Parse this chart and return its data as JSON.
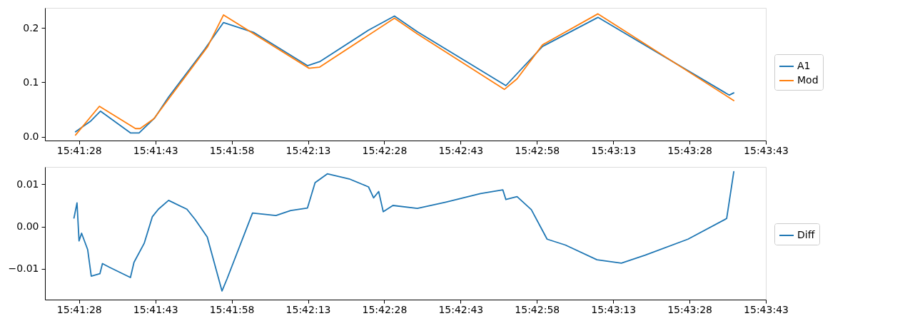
{
  "chart_data": [
    {
      "type": "line",
      "xlim": [
        15.68925,
        15.728611
      ],
      "ylim": [
        -0.007,
        0.237
      ],
      "xticks": [
        {
          "value": 15.691111,
          "label": "15:41:28"
        },
        {
          "value": 15.695278,
          "label": "15:41:43"
        },
        {
          "value": 15.699444,
          "label": "15:41:58"
        },
        {
          "value": 15.703611,
          "label": "15:42:13"
        },
        {
          "value": 15.707778,
          "label": "15:42:28"
        },
        {
          "value": 15.711944,
          "label": "15:42:43"
        },
        {
          "value": 15.716111,
          "label": "15:42:58"
        },
        {
          "value": 15.720278,
          "label": "15:43:13"
        },
        {
          "value": 15.724444,
          "label": "15:43:28"
        },
        {
          "value": 15.728611,
          "label": "15:43:43"
        }
      ],
      "yticks": [
        {
          "value": 0,
          "label": "0.0"
        },
        {
          "value": 0.1,
          "label": "0.1"
        },
        {
          "value": 0.2,
          "label": "0.2"
        }
      ],
      "legend": "right",
      "marker": "none",
      "line_style": "solid",
      "series": [
        {
          "name": "A1",
          "color": "#1f77b4",
          "x": [
            15.690917,
            15.691722,
            15.692278,
            15.693917,
            15.694389,
            15.69525,
            15.696,
            15.697972,
            15.699,
            15.700667,
            15.703583,
            15.70425,
            15.706917,
            15.708333,
            15.709583,
            15.714417,
            15.716417,
            15.719444,
            15.726611,
            15.726861
          ],
          "values": [
            0.009,
            0.028,
            0.047,
            0.007,
            0.007,
            0.035,
            0.073,
            0.161,
            0.21,
            0.1915,
            0.1307,
            0.138,
            0.196,
            0.222,
            0.193,
            0.094,
            0.166,
            0.2195,
            0.0765,
            0.0807
          ]
        },
        {
          "name": "Mod",
          "color": "#ff7f0e",
          "x": [
            15.690917,
            15.692222,
            15.694194,
            15.694444,
            15.695194,
            15.698139,
            15.699,
            15.703667,
            15.70425,
            15.708333,
            15.709583,
            15.714333,
            15.715028,
            15.716417,
            15.719444,
            15.726861
          ],
          "values": [
            0.003,
            0.056,
            0.015,
            0.015,
            0.033,
            0.166,
            0.224,
            0.126,
            0.128,
            0.218,
            0.189,
            0.087,
            0.1065,
            0.169,
            0.226,
            0.0665
          ]
        }
      ]
    },
    {
      "type": "line",
      "xlim": [
        15.68925,
        15.728611
      ],
      "ylim": [
        -0.01735,
        0.01414
      ],
      "xticks": [
        {
          "value": 15.691111,
          "label": "15:41:28"
        },
        {
          "value": 15.695278,
          "label": "15:41:43"
        },
        {
          "value": 15.699444,
          "label": "15:41:58"
        },
        {
          "value": 15.703611,
          "label": "15:42:13"
        },
        {
          "value": 15.707778,
          "label": "15:42:28"
        },
        {
          "value": 15.711944,
          "label": "15:42:43"
        },
        {
          "value": 15.716111,
          "label": "15:42:58"
        },
        {
          "value": 15.720278,
          "label": "15:43:13"
        },
        {
          "value": 15.724444,
          "label": "15:43:28"
        },
        {
          "value": 15.728611,
          "label": "15:43:43"
        }
      ],
      "yticks": [
        {
          "value": -0.01,
          "label": "−0.01"
        },
        {
          "value": 0,
          "label": "0.00"
        },
        {
          "value": 0.01,
          "label": "0.01"
        }
      ],
      "legend": "right",
      "marker": "none",
      "line_style": "solid",
      "series": [
        {
          "name": "Diff",
          "color": "#1f77b4",
          "x": [
            15.690833,
            15.691,
            15.691111,
            15.69125,
            15.691583,
            15.691778,
            15.69225,
            15.692389,
            15.692778,
            15.693917,
            15.694111,
            15.694667,
            15.695111,
            15.695444,
            15.696,
            15.697,
            15.697444,
            15.698111,
            15.698917,
            15.699194,
            15.700583,
            15.701861,
            15.702667,
            15.703583,
            15.704,
            15.704667,
            15.705861,
            15.706917,
            15.707194,
            15.707472,
            15.707722,
            15.70825,
            15.709583,
            15.711139,
            15.713028,
            15.71425,
            15.714417,
            15.715028,
            15.715806,
            15.716667,
            15.717667,
            15.719389,
            15.720722,
            15.722028,
            15.724361,
            15.726472,
            15.726861
          ],
          "values": [
            0.002,
            0.0056,
            -0.0034,
            -0.0016,
            -0.0055,
            -0.0118,
            -0.0112,
            -0.0088,
            -0.0097,
            -0.0121,
            -0.0085,
            -0.004,
            0.0023,
            0.0041,
            0.0062,
            0.0041,
            0.0017,
            -0.0025,
            -0.0153,
            -0.0124,
            0.0032,
            0.0026,
            0.0038,
            0.0044,
            0.0104,
            0.0125,
            0.0113,
            0.0094,
            0.0068,
            0.0083,
            0.0035,
            0.005,
            0.0043,
            0.0058,
            0.0078,
            0.0087,
            0.0064,
            0.0071,
            0.004,
            -0.003,
            -0.0044,
            -0.0079,
            -0.0087,
            -0.0068,
            -0.003,
            0.0019,
            0.013
          ]
        }
      ]
    }
  ]
}
